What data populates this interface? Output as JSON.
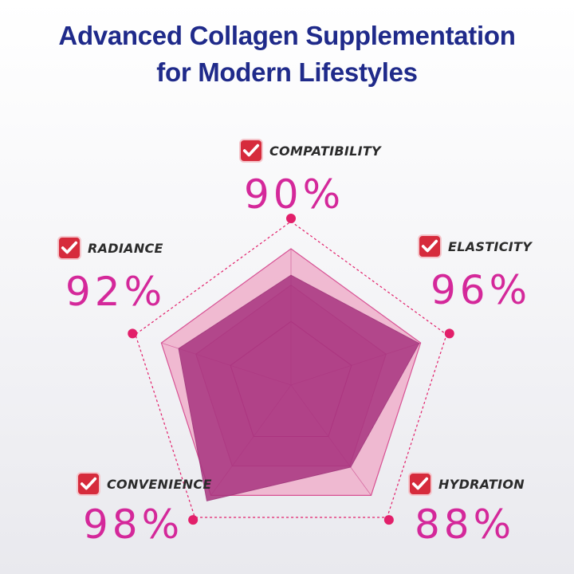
{
  "title": {
    "line1": "Advanced Collagen Supplementation",
    "line2": "for Modern Lifestyles"
  },
  "chart_data": {
    "type": "radar",
    "axes": [
      {
        "label": "COMPATIBILITY",
        "value_text": "90%",
        "value": 90
      },
      {
        "label": "ELASTICITY",
        "value_text": "96%",
        "value": 96
      },
      {
        "label": "HYDRATION",
        "value_text": "88%",
        "value": 88
      },
      {
        "label": "CONVENIENCE",
        "value_text": "98%",
        "value": 98
      },
      {
        "label": "RADIANCE",
        "value_text": "92%",
        "value": 92
      }
    ],
    "series": [
      {
        "values": [
          90,
          96,
          88,
          98,
          92
        ],
        "color": "#a8347f"
      }
    ],
    "range": [
      0,
      100
    ]
  },
  "colors": {
    "title": "#1f2a8a",
    "accent": "#d4289a",
    "check_badge": "#d62b3c",
    "outer_fill": "#f0b7d0",
    "mid_fill": "#e48bb8",
    "dot": "#e21f6a"
  },
  "icons": {
    "check": "checkmark-badge-icon"
  }
}
